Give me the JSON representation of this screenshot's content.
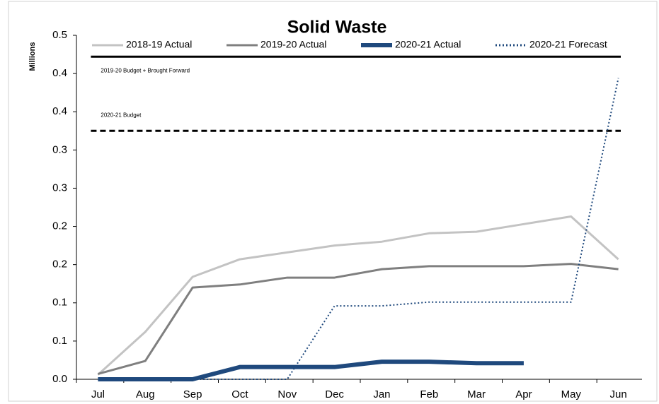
{
  "chart_data": {
    "type": "line",
    "title": "Solid Waste",
    "y_label": "Millions",
    "categories": [
      "Jul",
      "Aug",
      "Sep",
      "Oct",
      "Nov",
      "Dec",
      "Jan",
      "Feb",
      "Mar",
      "Apr",
      "May",
      "Jun"
    ],
    "ylim": [
      0,
      0.45
    ],
    "yticks": [
      {
        "value": 0,
        "label": "0.0"
      },
      {
        "value": 0.05,
        "label": "0.1"
      },
      {
        "value": 0.1,
        "label": "0.1"
      },
      {
        "value": 0.15,
        "label": "0.2"
      },
      {
        "value": 0.2,
        "label": "0.2"
      },
      {
        "value": 0.25,
        "label": "0.3"
      },
      {
        "value": 0.3,
        "label": "0.3"
      },
      {
        "value": 0.35,
        "label": "0.4"
      },
      {
        "value": 0.4,
        "label": "0.4"
      },
      {
        "value": 0.45,
        "label": "0.5"
      }
    ],
    "series": [
      {
        "name": "2018-19 Actual",
        "color": "#c3c3c3",
        "style": "solid",
        "width": 3,
        "values": [
          0.006,
          0.062,
          0.134,
          0.157,
          0.166,
          0.175,
          0.18,
          0.191,
          0.193,
          0.203,
          0.213,
          0.157
        ]
      },
      {
        "name": "2019-20 Actual",
        "color": "#7f7f7f",
        "style": "solid",
        "width": 3,
        "values": [
          0.007,
          0.024,
          0.12,
          0.124,
          0.133,
          0.133,
          0.144,
          0.148,
          0.148,
          0.148,
          0.151,
          0.144
        ]
      },
      {
        "name": "2020-21 Actual",
        "color": "#1f497d",
        "style": "solid",
        "width": 6,
        "values": [
          0,
          0,
          0,
          0.016,
          0.016,
          0.016,
          0.023,
          0.023,
          0.021,
          0.021,
          null,
          null
        ]
      },
      {
        "name": "2020-21 Forecast",
        "color": "#1f497d",
        "style": "dotted",
        "width": 2,
        "values": [
          null,
          null,
          0,
          0,
          0,
          0.096,
          0.096,
          0.101,
          0.101,
          0.101,
          0.101,
          0.394
        ]
      }
    ],
    "reference_lines": [
      {
        "label": "2019-20 Budget + Brought Forward",
        "value": 0.422,
        "color": "#000000",
        "style": "solid"
      },
      {
        "label": "2020-21 Budget",
        "value": 0.325,
        "color": "#000000",
        "style": "dashed"
      }
    ]
  }
}
